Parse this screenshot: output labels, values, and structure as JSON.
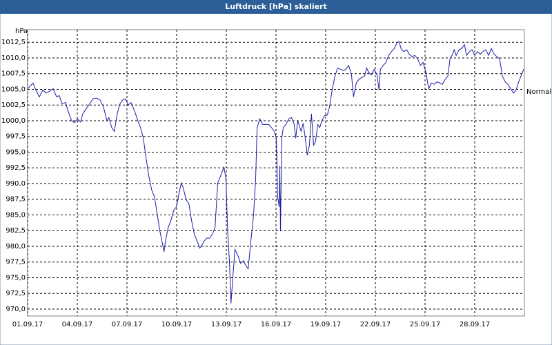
{
  "chart_data": {
    "type": "line",
    "title": "Luftdruck [hPa] skaliert",
    "y_label": "hPa",
    "reference": {
      "label": "Normal",
      "value": 1004.6
    },
    "xlim": [
      0,
      30
    ],
    "ylim": [
      968.9,
      1014.5
    ],
    "grid": true,
    "line_style": "dashed",
    "xticks": [
      {
        "value": 0,
        "label": "01.09.17"
      },
      {
        "value": 3,
        "label": "04.09.17"
      },
      {
        "value": 6,
        "label": "07.09.17"
      },
      {
        "value": 9,
        "label": "10.09.17"
      },
      {
        "value": 12,
        "label": "13.09.17"
      },
      {
        "value": 15,
        "label": "16.09.17"
      },
      {
        "value": 18,
        "label": "19.09.17"
      },
      {
        "value": 21,
        "label": "22.09.17"
      },
      {
        "value": 24,
        "label": "25.09.17"
      },
      {
        "value": 27,
        "label": "28.09.17"
      }
    ],
    "yticks": [
      {
        "value": 970,
        "label": "970,0"
      },
      {
        "value": 972.5,
        "label": "972,5"
      },
      {
        "value": 975,
        "label": "975,0"
      },
      {
        "value": 977.5,
        "label": "977,5"
      },
      {
        "value": 980,
        "label": "980,0"
      },
      {
        "value": 982.5,
        "label": "982,5"
      },
      {
        "value": 985,
        "label": "985,0"
      },
      {
        "value": 987.5,
        "label": "987,5"
      },
      {
        "value": 990,
        "label": "990,0"
      },
      {
        "value": 992.5,
        "label": "992,5"
      },
      {
        "value": 995,
        "label": "995,0"
      },
      {
        "value": 997.5,
        "label": "997,5"
      },
      {
        "value": 1000,
        "label": "1000,0"
      },
      {
        "value": 1002.5,
        "label": "1002,5"
      },
      {
        "value": 1005,
        "label": "1005,0"
      },
      {
        "value": 1007.5,
        "label": "1007,5"
      },
      {
        "value": 1010,
        "label": "1010,0"
      },
      {
        "value": 1012.5,
        "label": "1012,5"
      }
    ],
    "x": [
      0,
      0.33,
      0.5,
      0.71,
      0.92,
      1.12,
      1.33,
      1.54,
      1.75,
      1.91,
      2.08,
      2.29,
      2.5,
      2.66,
      2.83,
      3.0,
      3.2,
      3.33,
      3.54,
      3.75,
      3.95,
      4.16,
      4.37,
      4.58,
      4.79,
      4.91,
      5.08,
      5.24,
      5.41,
      5.58,
      5.74,
      5.91,
      6.08,
      6.24,
      6.45,
      6.66,
      6.82,
      6.99,
      7.16,
      7.32,
      7.49,
      7.66,
      7.82,
      7.99,
      8.16,
      8.24,
      8.32,
      8.49,
      8.65,
      8.82,
      8.99,
      9.15,
      9.28,
      9.4,
      9.57,
      9.74,
      9.9,
      10.07,
      10.24,
      10.4,
      10.53,
      10.65,
      10.82,
      10.99,
      11.15,
      11.32,
      11.48,
      11.65,
      11.86,
      11.98,
      12.07,
      12.19,
      12.28,
      12.4,
      12.52,
      12.69,
      12.86,
      13.02,
      13.19,
      13.32,
      13.48,
      13.65,
      13.77,
      13.86,
      14.02,
      14.19,
      14.4,
      14.56,
      14.73,
      14.9,
      15.02,
      15.1,
      15.19,
      15.23,
      15.27,
      15.35,
      15.44,
      15.6,
      15.77,
      15.94,
      16.1,
      16.19,
      16.31,
      16.44,
      16.52,
      16.64,
      16.77,
      16.89,
      17.02,
      17.14,
      17.27,
      17.39,
      17.52,
      17.64,
      17.77,
      17.93,
      18.1,
      18.23,
      18.39,
      18.56,
      18.72,
      18.89,
      19.06,
      19.22,
      19.39,
      19.56,
      19.68,
      19.85,
      20.01,
      20.18,
      20.35,
      20.47,
      20.6,
      20.76,
      20.93,
      21.1,
      21.22,
      21.3,
      21.47,
      21.64,
      21.8,
      21.97,
      22.14,
      22.3,
      22.43,
      22.55,
      22.72,
      22.89,
      23.05,
      23.22,
      23.38,
      23.55,
      23.72,
      23.88,
      24.05,
      24.22,
      24.38,
      24.55,
      24.72,
      24.88,
      25.05,
      25.22,
      25.38,
      25.51,
      25.63,
      25.76,
      25.88,
      26.05,
      26.21,
      26.38,
      26.51,
      26.67,
      26.84,
      27.0,
      27.17,
      27.34,
      27.5,
      27.67,
      27.84,
      28.0,
      28.17,
      28.34,
      28.5,
      28.67,
      28.84,
      29.0,
      29.17,
      29.34,
      29.5,
      29.63,
      29.79,
      29.96
    ],
    "series": [
      {
        "color": "#1c1ca8",
        "values": [
          1005.1,
          1006.0,
          1004.9,
          1003.8,
          1004.9,
          1004.4,
          1004.7,
          1005.1,
          1003.8,
          1004.0,
          1002.7,
          1002.9,
          1001.1,
          1000.0,
          999.7,
          1000.3,
          999.8,
          1001.1,
          1001.9,
          1002.7,
          1003.5,
          1003.6,
          1003.3,
          1002.2,
          1000.0,
          1000.5,
          998.9,
          998.3,
          1001.1,
          1002.7,
          1003.3,
          1003.5,
          1002.5,
          1002.9,
          1001.6,
          1000.0,
          998.9,
          997.2,
          993.9,
          991.2,
          989.0,
          987.9,
          985.2,
          982.4,
          980.2,
          979.1,
          980.8,
          983.0,
          984.1,
          985.7,
          986.3,
          988.5,
          990.1,
          989.3,
          987.4,
          986.8,
          984.1,
          981.9,
          980.8,
          979.7,
          980.2,
          980.8,
          981.3,
          981.3,
          981.9,
          983.0,
          990.1,
          991.2,
          992.6,
          990.7,
          983.0,
          977.5,
          970.9,
          975.3,
          979.5,
          978.6,
          977.3,
          977.7,
          976.9,
          976.4,
          980.8,
          985.2,
          990.7,
          998.9,
          1000.3,
          999.4,
          999.4,
          999.4,
          998.9,
          998.3,
          997.2,
          987.9,
          986.3,
          992.8,
          982.4,
          997.2,
          998.9,
          999.4,
          1000.3,
          1000.5,
          999.4,
          997.2,
          1000.0,
          998.9,
          998.3,
          999.6,
          997.2,
          994.5,
          996.1,
          1001.1,
          996.1,
          996.7,
          999.4,
          998.9,
          1000.0,
          1000.8,
          1000.9,
          1002.2,
          1004.9,
          1007.1,
          1008.4,
          1008.2,
          1008.0,
          1008.2,
          1008.8,
          1007.3,
          1003.8,
          1006.0,
          1006.6,
          1006.9,
          1007.1,
          1008.4,
          1007.7,
          1007.3,
          1008.2,
          1007.3,
          1004.9,
          1008.2,
          1008.8,
          1009.3,
          1010.4,
          1011.0,
          1011.5,
          1012.4,
          1012.6,
          1011.5,
          1011.0,
          1011.3,
          1010.6,
          1010.2,
          1010.4,
          1009.9,
          1008.8,
          1009.3,
          1007.7,
          1005.1,
          1006.0,
          1005.8,
          1006.2,
          1006.0,
          1005.8,
          1006.6,
          1007.1,
          1009.9,
          1010.4,
          1011.3,
          1010.4,
          1011.3,
          1011.5,
          1012.1,
          1010.4,
          1011.0,
          1011.3,
          1010.4,
          1011.0,
          1010.6,
          1011.0,
          1011.3,
          1010.4,
          1011.5,
          1010.6,
          1010.2,
          1009.9,
          1007.1,
          1006.2,
          1005.8,
          1005.1,
          1004.4,
          1004.9,
          1006.0,
          1007.1,
          1008.2
        ]
      }
    ]
  }
}
